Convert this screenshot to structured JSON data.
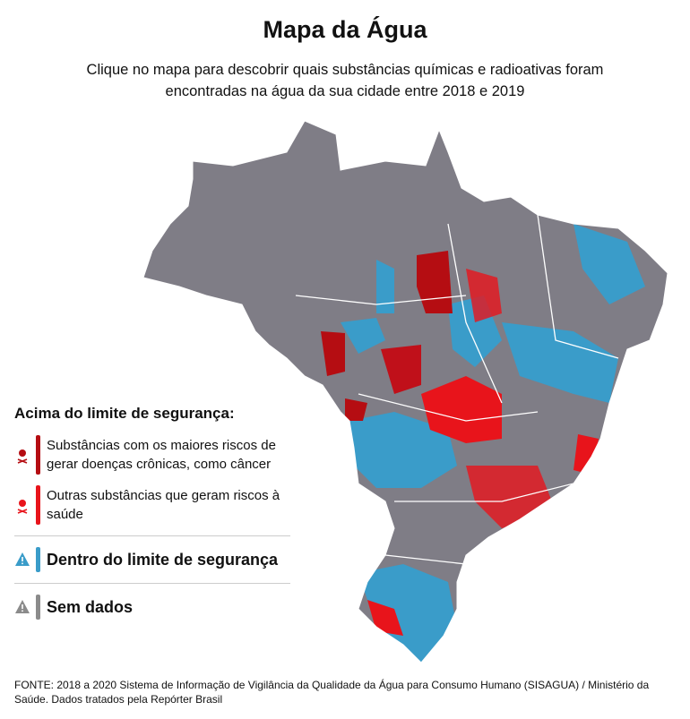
{
  "header": {
    "title": "Mapa da Água",
    "subtitle": "Clique no mapa para descobrir quais substâncias químicas e radioativas foram encontradas na água da sua cidade entre 2018 e 2019"
  },
  "legend": {
    "heading": "Acima do limite de segurança:",
    "items": [
      "Substâncias com os maiores riscos de gerar doenças crônicas, como câncer",
      "Outras substâncias que geram riscos à saúde",
      "Dentro do limite de segurança",
      "Sem dados"
    ]
  },
  "source": "FONTE: 2018 a 2020 Sistema de Informação de Vigilância da Qualidade da Água para Consumo Humano (SISAGUA) / Ministério da Saúde. Dados tratados pela Repórter Brasil"
}
